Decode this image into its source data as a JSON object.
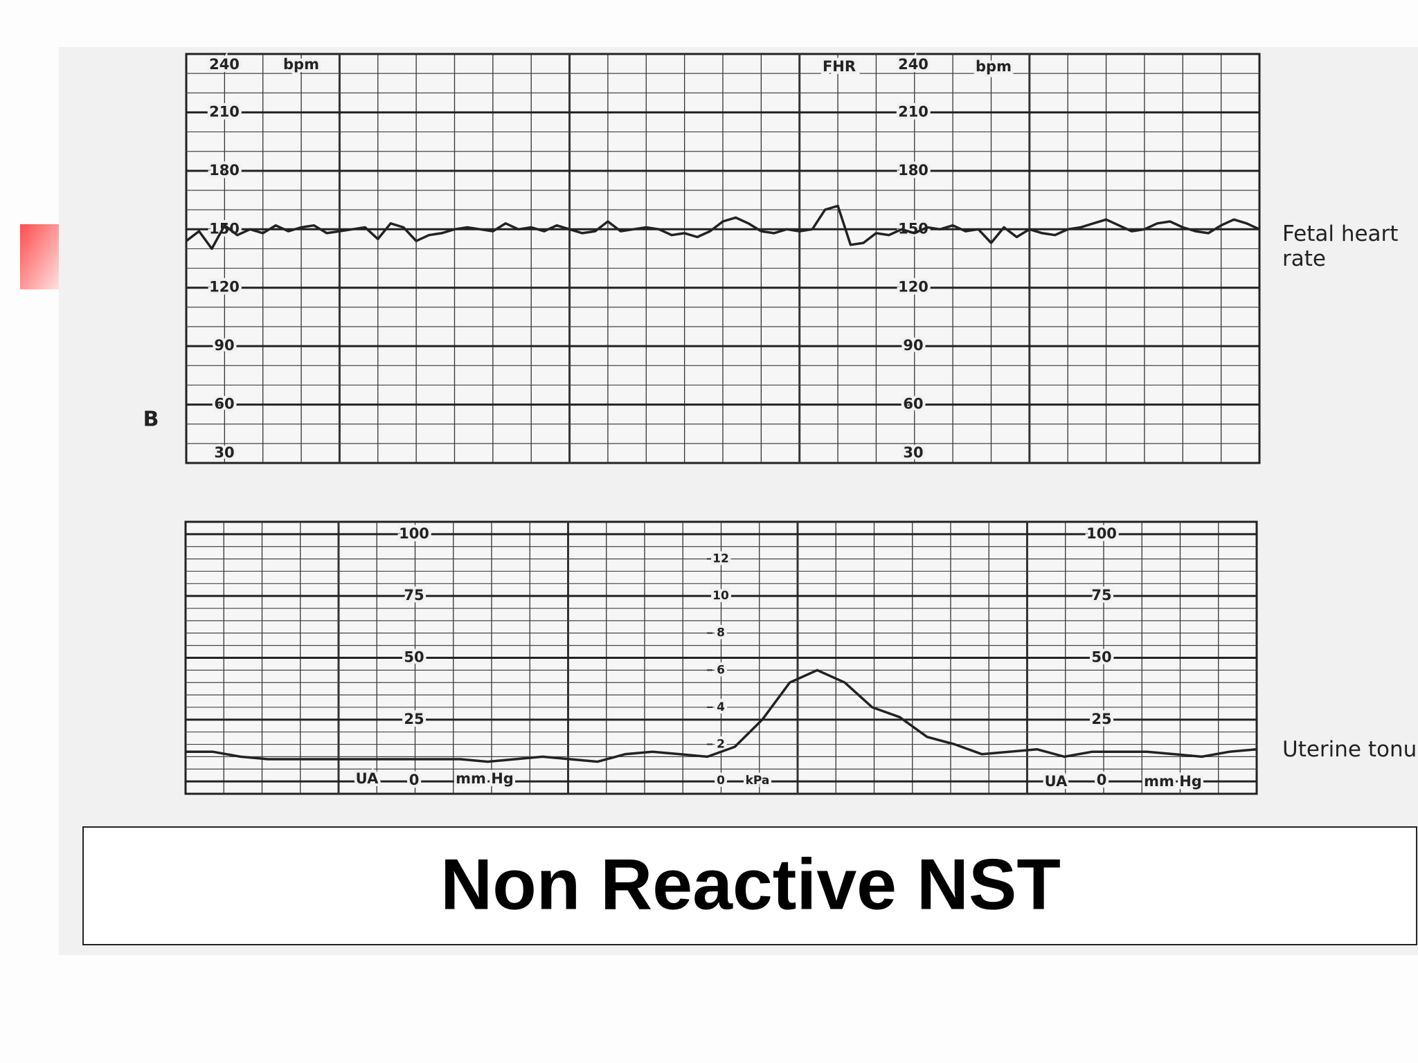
{
  "title": "Non Reactive NST",
  "panel_label": "B",
  "chart_data": [
    {
      "type": "line",
      "y_label": "FHR",
      "y_unit": "bpm",
      "ylim": [
        30,
        240
      ],
      "yticks": [
        30,
        60,
        90,
        120,
        150,
        180,
        210,
        240
      ],
      "grid": true,
      "series": [
        {
          "name": "Fetal heart rate",
          "color": "#222222",
          "values": [
            144,
            149,
            140,
            152,
            147,
            150,
            148,
            152,
            149,
            151,
            152,
            148,
            149,
            150,
            151,
            145,
            153,
            151,
            144,
            147,
            148,
            150,
            151,
            150,
            149,
            153,
            150,
            151,
            149,
            152,
            150,
            148,
            149,
            154,
            149,
            150,
            151,
            150,
            147,
            148,
            146,
            149,
            154,
            156,
            153,
            149,
            148,
            150,
            149,
            150,
            160,
            162,
            142,
            143,
            148,
            147,
            150,
            148,
            151,
            150,
            152,
            149,
            150,
            143,
            151,
            146,
            150,
            148,
            147,
            150,
            151,
            153,
            155,
            152,
            149,
            150,
            153,
            154,
            151,
            149,
            148,
            152,
            155,
            153,
            150
          ]
        }
      ]
    },
    {
      "type": "line",
      "y_label": "UA",
      "y_unit": "mm Hg",
      "y2_unit": "kPa",
      "ylim": [
        -5,
        105
      ],
      "yticks": [
        0,
        25,
        50,
        75,
        100
      ],
      "y2lim": [
        -0.67,
        14
      ],
      "y2ticks": [
        0,
        2,
        4,
        6,
        8,
        10,
        12
      ],
      "grid": true,
      "series": [
        {
          "name": "Uterine tonu",
          "color": "#222222",
          "values": [
            12,
            12,
            10,
            9,
            9,
            9,
            9,
            9,
            9,
            9,
            9,
            8,
            9,
            10,
            9,
            8,
            11,
            12,
            11,
            10,
            14,
            25,
            40,
            45,
            40,
            30,
            26,
            18,
            15,
            11,
            12,
            13,
            10,
            12,
            12,
            12,
            11,
            10,
            12,
            13
          ]
        }
      ]
    }
  ]
}
